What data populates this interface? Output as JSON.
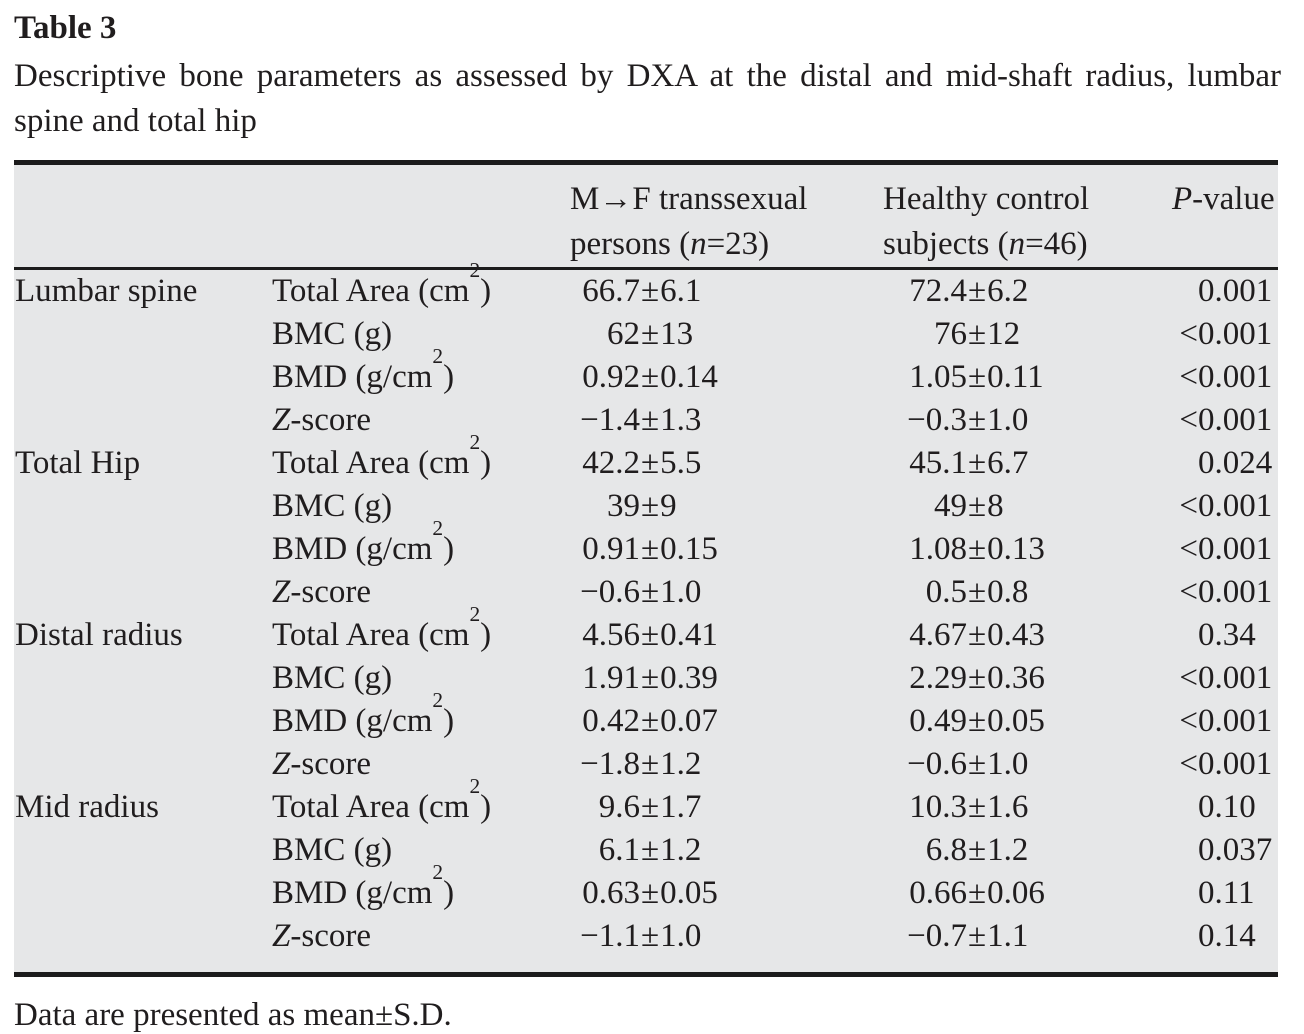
{
  "document": {
    "table_number": "Table 3",
    "caption": "Descriptive bone parameters as assessed by DXA at the distal and mid-shaft radius, lumbar spine and total hip",
    "footnote": "Data are presented as mean±S.D."
  },
  "table": {
    "column_headers": {
      "mtf": "M→F transsexual\npersons (*n*=23)",
      "control": "Healthy control\nsubjects (*n*=46)",
      "p": "*P*-value"
    },
    "groups": [
      {
        "label": "Lumbar spine",
        "rows": [
          {
            "param": "Total Area (cm^2)",
            "mtf": "66.7±6.1",
            "control": "72.4±6.2",
            "p": "0.001"
          },
          {
            "param": "BMC (g)",
            "mtf": "62±13",
            "control": "76±12",
            "p": "<0.001"
          },
          {
            "param": "BMD (g/cm^2)",
            "mtf": "0.92±0.14",
            "control": "1.05±0.11",
            "p": "<0.001"
          },
          {
            "param": "*Z*-score",
            "mtf": "−1.4±1.3",
            "control": "−0.3±1.0",
            "p": "<0.001"
          }
        ]
      },
      {
        "label": "Total Hip",
        "rows": [
          {
            "param": "Total Area (cm^2)",
            "mtf": "42.2±5.5",
            "control": "45.1±6.7",
            "p": "0.024"
          },
          {
            "param": "BMC (g)",
            "mtf": "39±9",
            "control": "49±8",
            "p": "<0.001"
          },
          {
            "param": "BMD (g/cm^2)",
            "mtf": "0.91±0.15",
            "control": "1.08±0.13",
            "p": "<0.001"
          },
          {
            "param": "*Z*-score",
            "mtf": "−0.6±1.0",
            "control": "0.5±0.8",
            "p": "<0.001"
          }
        ]
      },
      {
        "label": "Distal radius",
        "rows": [
          {
            "param": "Total Area (cm^2)",
            "mtf": "4.56±0.41",
            "control": "4.67±0.43",
            "p": "0.34"
          },
          {
            "param": "BMC (g)",
            "mtf": "1.91±0.39",
            "control": "2.29±0.36",
            "p": "<0.001"
          },
          {
            "param": "BMD (g/cm^2)",
            "mtf": "0.42±0.07",
            "control": "0.49±0.05",
            "p": "<0.001"
          },
          {
            "param": "*Z*-score",
            "mtf": "−1.8±1.2",
            "control": "−0.6±1.0",
            "p": "<0.001"
          }
        ]
      },
      {
        "label": "Mid radius",
        "rows": [
          {
            "param": "Total Area (cm^2)",
            "mtf": "9.6±1.7",
            "control": "10.3±1.6",
            "p": "0.10"
          },
          {
            "param": "BMC (g)",
            "mtf": "6.1±1.2",
            "control": "6.8±1.2",
            "p": "0.037"
          },
          {
            "param": "BMD (g/cm^2)",
            "mtf": "0.63±0.05",
            "control": "0.66±0.06",
            "p": "0.11"
          },
          {
            "param": "*Z*-score",
            "mtf": "−1.1±1.0",
            "control": "−0.7±1.1",
            "p": "0.14"
          }
        ]
      }
    ]
  },
  "colors": {
    "table_background": "#e6e7e8",
    "rule": "#1c1c1c",
    "text": "#201d1e"
  }
}
